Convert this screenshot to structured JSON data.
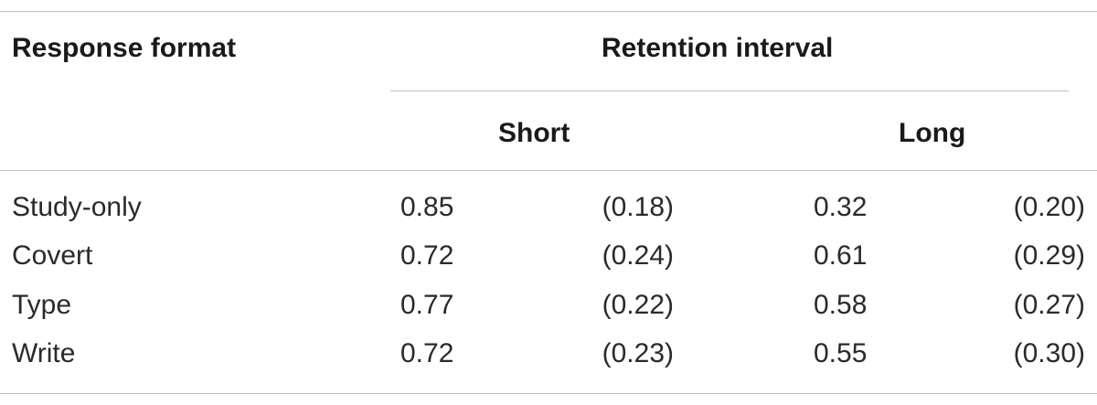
{
  "table": {
    "header": {
      "response_format": "Response format",
      "retention_interval": "Retention interval",
      "short": "Short",
      "long": "Long"
    },
    "rows": [
      {
        "format": "Study-only",
        "short_mean": "0.85",
        "short_sd": "(0.18)",
        "long_mean": "0.32",
        "long_sd": "(0.20)"
      },
      {
        "format": "Covert",
        "short_mean": "0.72",
        "short_sd": "(0.24)",
        "long_mean": "0.61",
        "long_sd": "(0.29)"
      },
      {
        "format": "Type",
        "short_mean": "0.77",
        "short_sd": "(0.22)",
        "long_mean": "0.58",
        "long_sd": "(0.27)"
      },
      {
        "format": "Write",
        "short_mean": "0.72",
        "short_sd": "(0.23)",
        "long_mean": "0.55",
        "long_sd": "(0.30)"
      }
    ]
  }
}
